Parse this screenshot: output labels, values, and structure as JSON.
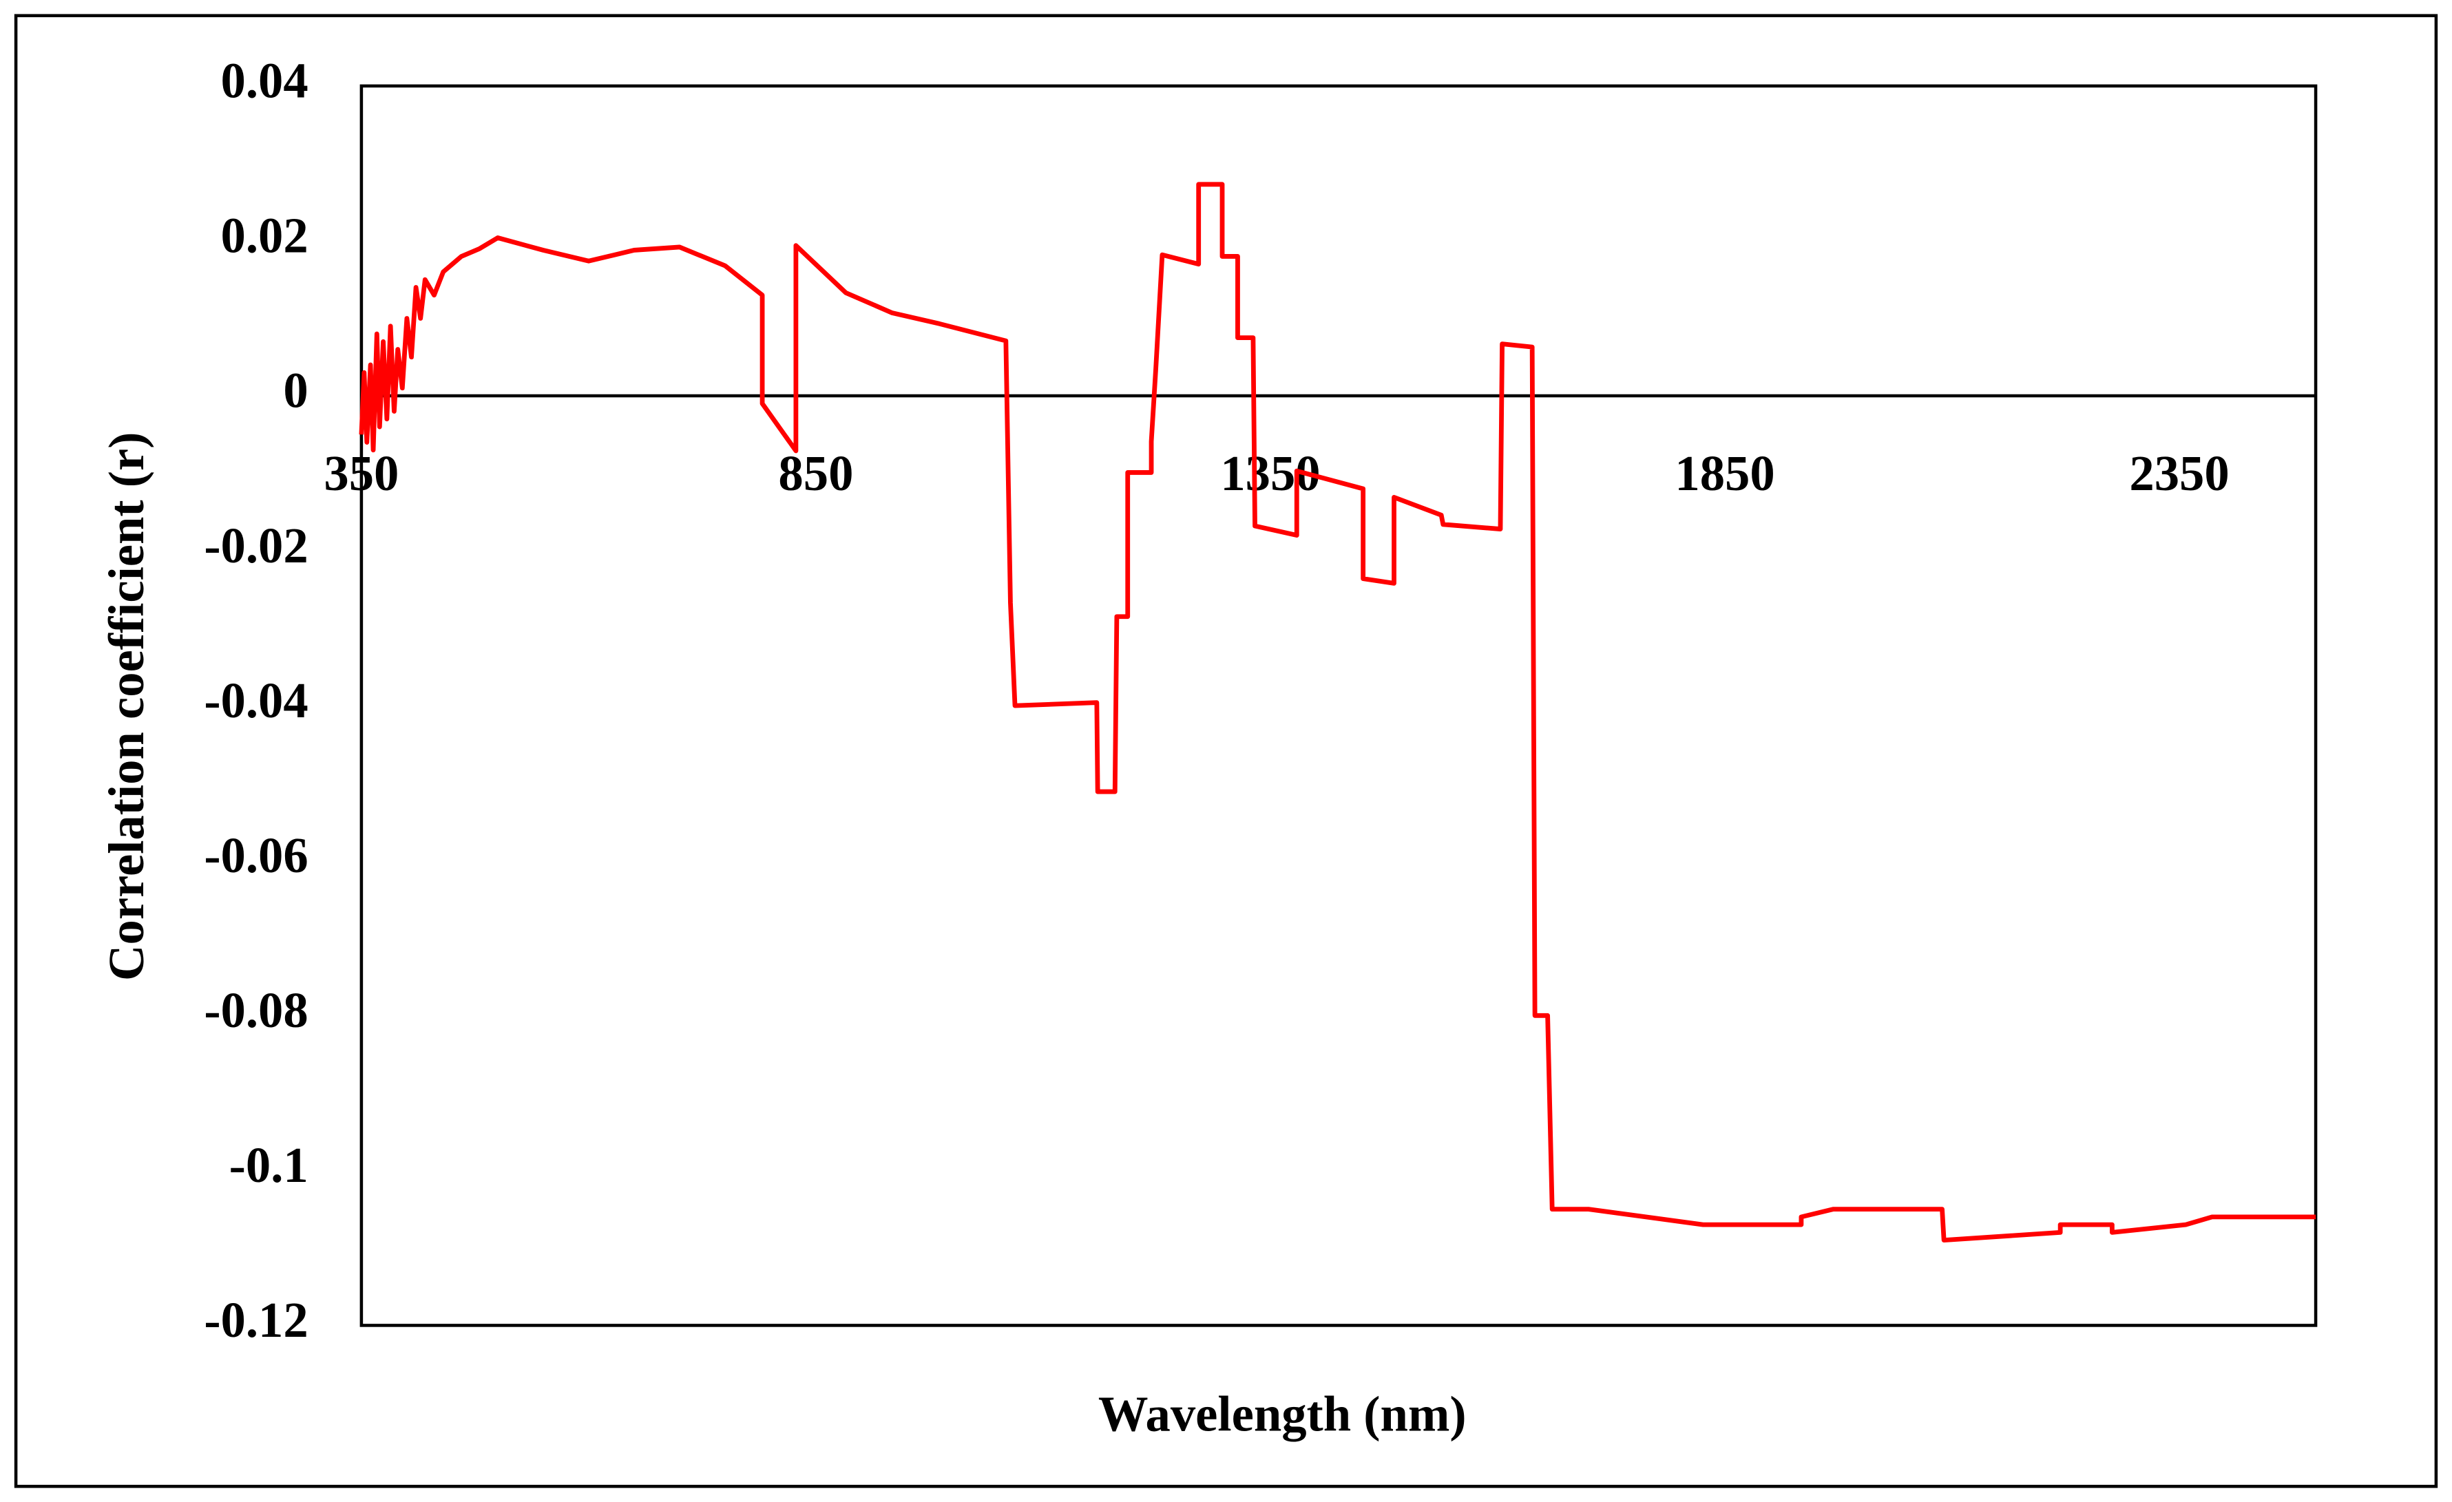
{
  "chart_data": {
    "type": "line",
    "xlabel": "Wavelength (nm)",
    "ylabel": "Correlation coefficient (r)",
    "xlim": [
      350,
      2500
    ],
    "ylim": [
      -0.12,
      0.04
    ],
    "xticks": [
      350,
      850,
      1350,
      1850,
      2350
    ],
    "yticks": [
      0.04,
      0.02,
      0,
      -0.02,
      -0.04,
      -0.06,
      -0.08,
      -0.1,
      -0.12
    ],
    "grid": false,
    "x": [
      350,
      353,
      356,
      360,
      363,
      367,
      370,
      374,
      378,
      382,
      386,
      390,
      395,
      400,
      405,
      410,
      415,
      420,
      430,
      440,
      460,
      480,
      500,
      550,
      600,
      650,
      700,
      750,
      791,
      791,
      828,
      828,
      883,
      934,
      986,
      1059,
      1064,
      1069,
      1159,
      1160,
      1179,
      1181,
      1193,
      1193,
      1219,
      1219,
      1224,
      1231,
      1271,
      1271,
      1297,
      1297,
      1314,
      1314,
      1331,
      1333,
      1379,
      1379,
      1452,
      1452,
      1486,
      1486,
      1538,
      1540,
      1603,
      1605,
      1638,
      1641,
      1655,
      1660,
      1700,
      1826,
      1934,
      1934,
      1969,
      2089,
      2091,
      2219,
      2219,
      2276,
      2276,
      2357,
      2386,
      2500
    ],
    "series": [
      {
        "name": "r",
        "color": "#ff0000",
        "values": [
          -0.005,
          0.003,
          -0.006,
          0.004,
          -0.007,
          0.008,
          -0.004,
          0.007,
          -0.003,
          0.009,
          -0.002,
          0.006,
          0.001,
          0.01,
          0.005,
          0.014,
          0.01,
          0.015,
          0.013,
          0.016,
          0.018,
          0.019,
          0.0204,
          0.0188,
          0.0174,
          0.0188,
          0.0192,
          0.0168,
          0.013,
          -0.001,
          -0.0071,
          0.0194,
          0.0133,
          0.0107,
          0.0093,
          0.0071,
          -0.0267,
          -0.04,
          -0.0396,
          -0.0511,
          -0.0511,
          -0.0285,
          -0.0285,
          -0.0099,
          -0.0099,
          -0.0059,
          0.0036,
          0.0182,
          0.017,
          0.0273,
          0.0273,
          0.018,
          0.018,
          0.0075,
          0.0075,
          -0.0168,
          -0.018,
          -0.0097,
          -0.012,
          -0.0236,
          -0.0242,
          -0.0131,
          -0.0154,
          -0.0166,
          -0.0172,
          0.0067,
          0.0063,
          -0.08,
          -0.08,
          -0.105,
          -0.105,
          -0.107,
          -0.107,
          -0.106,
          -0.105,
          -0.105,
          -0.109,
          -0.108,
          -0.107,
          -0.107,
          -0.108,
          -0.107,
          -0.106,
          -0.106
        ]
      }
    ]
  }
}
